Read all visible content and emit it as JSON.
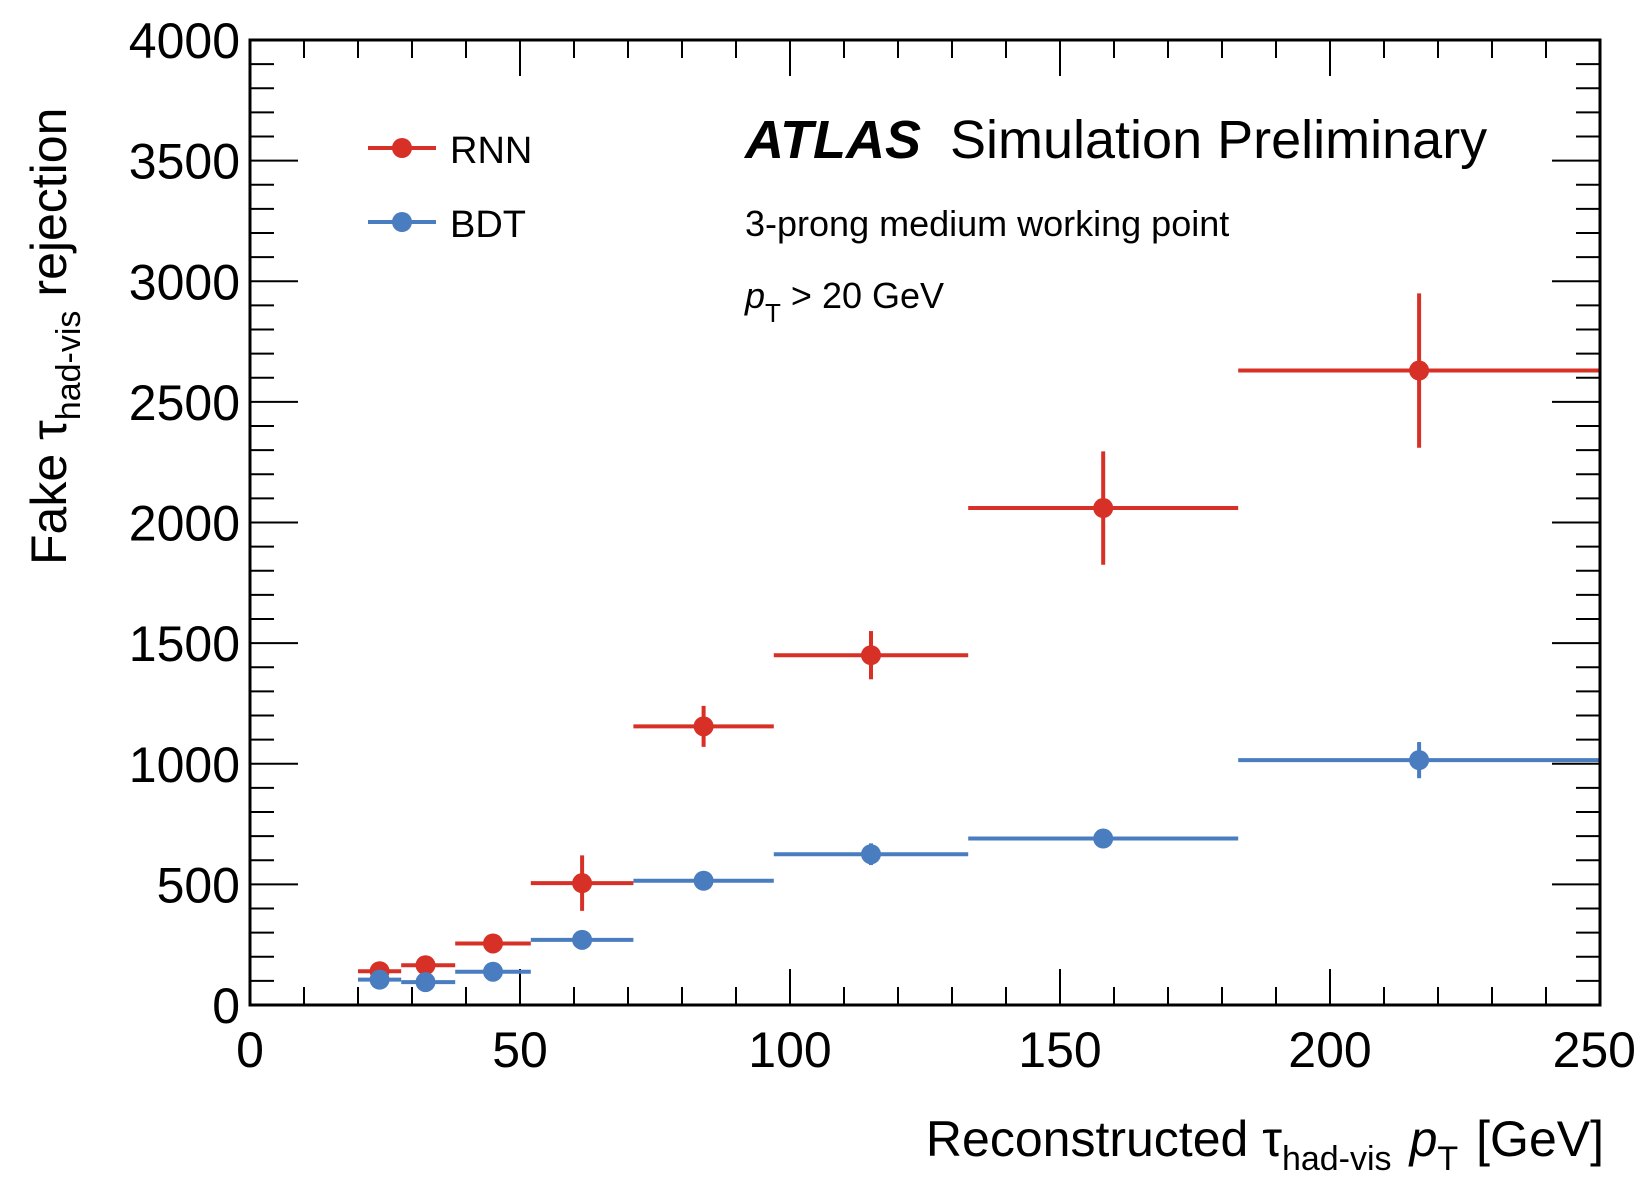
{
  "chart_data": {
    "type": "scatter",
    "experiment": "ATLAS",
    "label": "Simulation Preliminary",
    "annotations": [
      "3-prong medium working point",
      "p",
      "T",
      "> 20 GeV"
    ],
    "xlabel": {
      "pre": "Reconstructed τ",
      "sub1": "had-vis",
      "mid": "p",
      "sub2": "T",
      "post": "[GeV]"
    },
    "ylabel": {
      "pre": "Fake τ",
      "sub": "had-vis",
      "post": "rejection"
    },
    "xlim": [
      0,
      250
    ],
    "ylim": [
      0,
      4000
    ],
    "xticks": [
      0,
      50,
      100,
      150,
      200,
      250
    ],
    "yticks": [
      0,
      500,
      1000,
      1500,
      2000,
      2500,
      3000,
      3500,
      4000
    ],
    "x_minor_step": 10,
    "y_minor_step": 100,
    "legend_position": "top-left",
    "series": [
      {
        "name": "RNN",
        "color": "#d73027",
        "points": [
          {
            "xlo": 20,
            "xhi": 28,
            "x": 24,
            "y": 140,
            "yerr": 12
          },
          {
            "xlo": 28,
            "xhi": 38,
            "x": 32.5,
            "y": 165,
            "yerr": 12
          },
          {
            "xlo": 38,
            "xhi": 52,
            "x": 45,
            "y": 255,
            "yerr": 18
          },
          {
            "xlo": 52,
            "xhi": 71,
            "x": 61.5,
            "y": 505,
            "yerr": 115
          },
          {
            "xlo": 71,
            "xhi": 97,
            "x": 84,
            "y": 1155,
            "yerr": 85
          },
          {
            "xlo": 97,
            "xhi": 133,
            "x": 115,
            "y": 1450,
            "yerr": 100
          },
          {
            "xlo": 133,
            "xhi": 183,
            "x": 158,
            "y": 2060,
            "yerr": 235
          },
          {
            "xlo": 183,
            "xhi": 250,
            "x": 216.5,
            "y": 2630,
            "yerr": 320
          }
        ]
      },
      {
        "name": "BDT",
        "color": "#4a7dbf",
        "points": [
          {
            "xlo": 20,
            "xhi": 28,
            "x": 24,
            "y": 105,
            "yerr": 8
          },
          {
            "xlo": 28,
            "xhi": 38,
            "x": 32.5,
            "y": 95,
            "yerr": 8
          },
          {
            "xlo": 38,
            "xhi": 52,
            "x": 45,
            "y": 138,
            "yerr": 10
          },
          {
            "xlo": 52,
            "xhi": 71,
            "x": 61.5,
            "y": 270,
            "yerr": 25
          },
          {
            "xlo": 71,
            "xhi": 97,
            "x": 84,
            "y": 515,
            "yerr": 30
          },
          {
            "xlo": 97,
            "xhi": 133,
            "x": 115,
            "y": 625,
            "yerr": 45
          },
          {
            "xlo": 133,
            "xhi": 183,
            "x": 158,
            "y": 690,
            "yerr": 30
          },
          {
            "xlo": 183,
            "xhi": 250,
            "x": 216.5,
            "y": 1015,
            "yerr": 75
          }
        ]
      }
    ]
  }
}
